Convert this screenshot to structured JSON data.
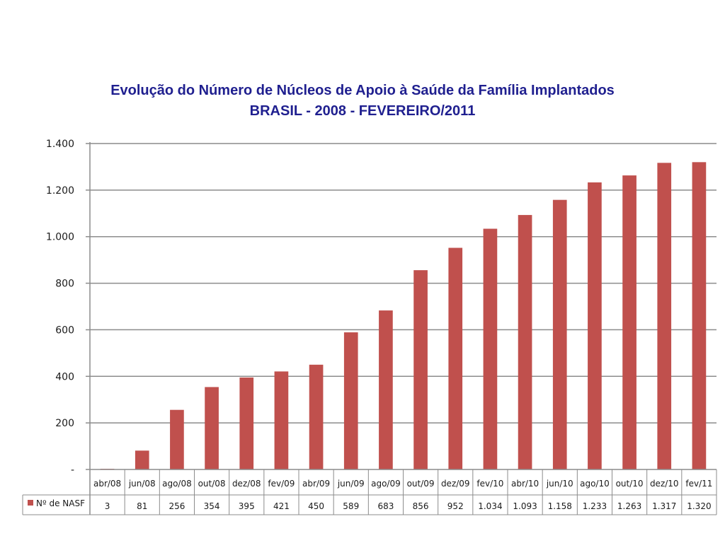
{
  "chart_data": {
    "type": "bar",
    "title": "Evolução  do Número de Núcleos de Apoio à Saúde da Família Implantados",
    "subtitle": "BRASIL - 2008 - FEVEREIRO/2011",
    "categories": [
      "abr/08",
      "jun/08",
      "ago/08",
      "out/08",
      "dez/08",
      "fev/09",
      "abr/09",
      "jun/09",
      "ago/09",
      "out/09",
      "dez/09",
      "fev/10",
      "abr/10",
      "jun/10",
      "ago/10",
      "out/10",
      "dez/10",
      "fev/11"
    ],
    "series": [
      {
        "name": "Nº de NASF",
        "values": [
          3,
          81,
          256,
          354,
          395,
          421,
          450,
          589,
          683,
          856,
          952,
          1034,
          1093,
          1158,
          1233,
          1263,
          1317,
          1320
        ],
        "labels": [
          "3",
          "81",
          "256",
          "354",
          "395",
          "421",
          "450",
          "589",
          "683",
          "856",
          "952",
          "1.034",
          "1.093",
          "1.158",
          "1.233",
          "1.263",
          "1.317",
          "1.320"
        ]
      }
    ],
    "ylim": [
      0,
      1400
    ],
    "yticks": [
      {
        "value": 0,
        "label": "-"
      },
      {
        "value": 200,
        "label": "200"
      },
      {
        "value": 400,
        "label": "400"
      },
      {
        "value": 600,
        "label": "600"
      },
      {
        "value": 800,
        "label": "800"
      },
      {
        "value": 1000,
        "label": "1.000"
      },
      {
        "value": 1200,
        "label": "1.200"
      },
      {
        "value": 1400,
        "label": "1.400"
      }
    ],
    "grid": true,
    "legend": "data-table",
    "bar_color": "#c0504d"
  }
}
